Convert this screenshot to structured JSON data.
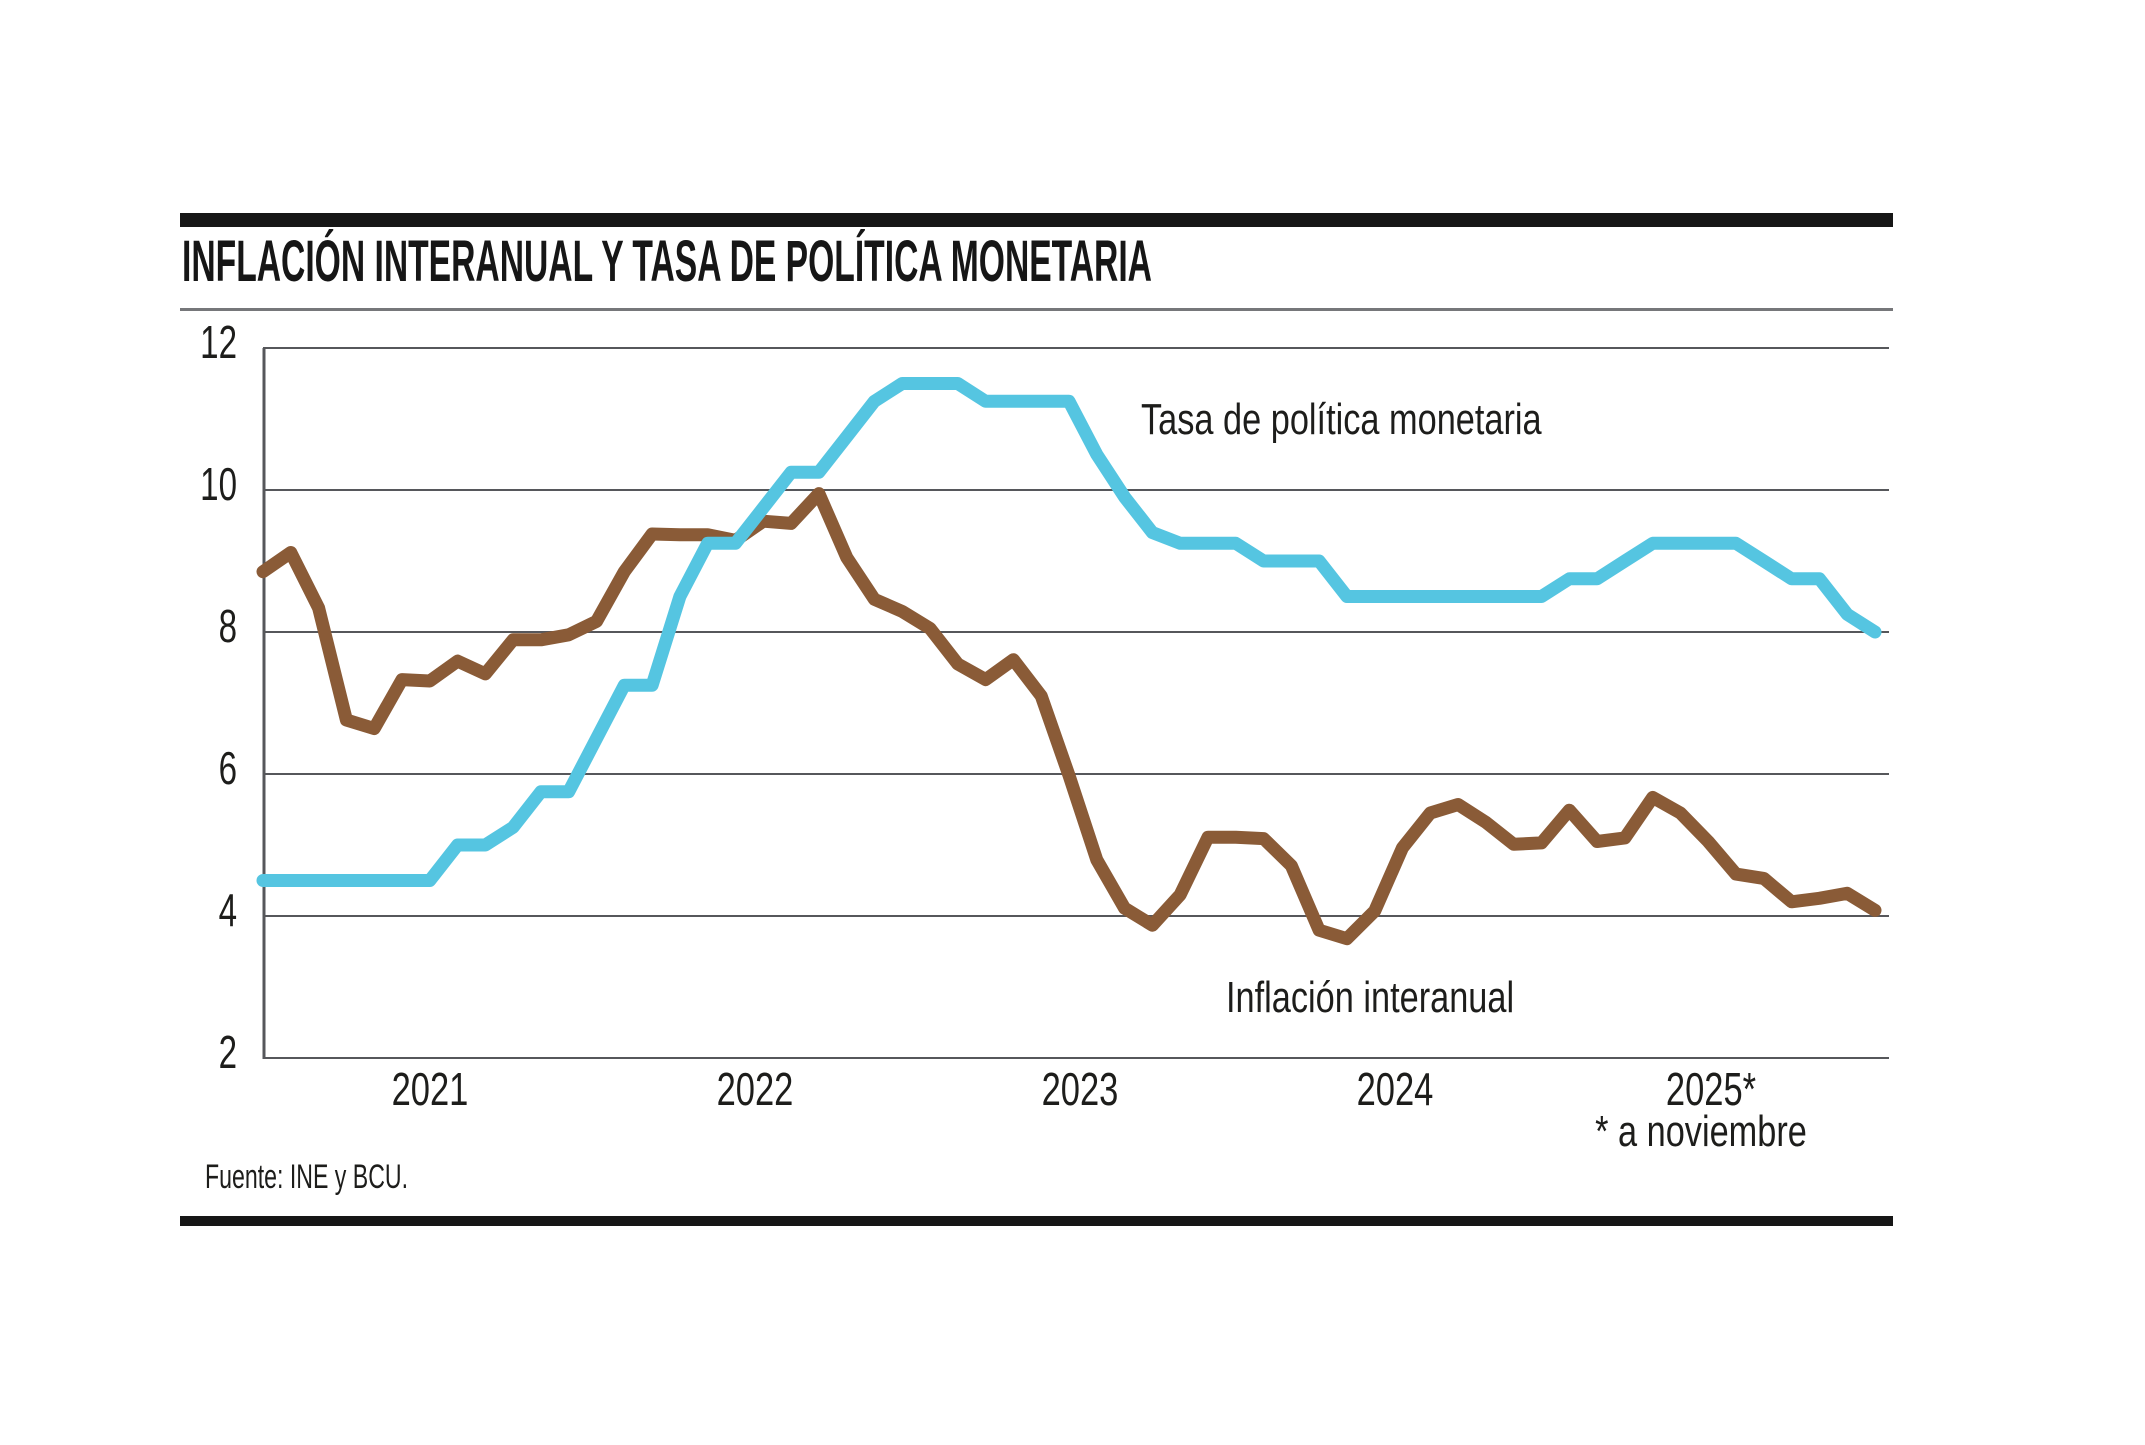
{
  "title": "INFLACIÓN INTERANUAL Y TASA DE POLÍTICA MONETARIA",
  "source": "Fuente: INE y BCU.",
  "footnote": "* a noviembre",
  "colors": {
    "tpm_line": "#55C5E1",
    "inflation_line": "#8A5B37",
    "grid": "#56575B",
    "rule_bar": "#161616",
    "text": "#1D1D1B"
  },
  "chart_data": {
    "type": "line",
    "title": "INFLACIÓN INTERANUAL Y TASA DE POLÍTICA MONETARIA",
    "xlabel": "",
    "ylabel": "",
    "x_unit": "month",
    "x_start": "2021-01",
    "x_end": "2025-11",
    "n_points": 59,
    "xtick_labels": [
      "2021",
      "2022",
      "2023",
      "2024",
      "2025*"
    ],
    "ylim": [
      2,
      12
    ],
    "yticks": [
      2,
      4,
      6,
      8,
      10,
      12
    ],
    "grid": "horizontal",
    "legend_position": "inline-annotations",
    "series": [
      {
        "name": "Tasa de política monetaria",
        "color": "#55C5E1",
        "values": [
          4.5,
          4.5,
          4.5,
          4.5,
          4.5,
          4.5,
          4.5,
          5.0,
          5.0,
          5.25,
          5.75,
          5.75,
          6.5,
          7.25,
          7.25,
          8.5,
          9.25,
          9.25,
          9.75,
          10.25,
          10.25,
          10.75,
          11.25,
          11.5,
          11.5,
          11.5,
          11.25,
          11.25,
          11.25,
          11.25,
          10.5,
          9.9,
          9.4,
          9.25,
          9.25,
          9.25,
          9.0,
          9.0,
          9.0,
          8.5,
          8.5,
          8.5,
          8.5,
          8.5,
          8.5,
          8.5,
          8.5,
          8.75,
          8.75,
          9.0,
          9.25,
          9.25,
          9.25,
          9.25,
          9.0,
          8.75,
          8.75,
          8.25,
          8.0
        ]
      },
      {
        "name": "Inflación interanual",
        "color": "#8A5B37",
        "values": [
          8.85,
          9.12,
          8.34,
          6.76,
          6.64,
          7.33,
          7.31,
          7.59,
          7.41,
          7.89,
          7.89,
          7.96,
          8.15,
          8.85,
          9.38,
          9.37,
          9.37,
          9.29,
          9.56,
          9.53,
          9.95,
          9.05,
          8.46,
          8.29,
          8.05,
          7.55,
          7.33,
          7.61,
          7.1,
          5.98,
          4.79,
          4.11,
          3.87,
          4.3,
          5.11,
          5.11,
          5.09,
          4.71,
          3.8,
          3.68,
          4.07,
          4.96,
          5.45,
          5.57,
          5.32,
          5.01,
          5.03,
          5.49,
          5.05,
          5.1,
          5.67,
          5.45,
          5.05,
          4.59,
          4.53,
          4.2,
          4.25,
          4.32,
          4.08
        ]
      }
    ]
  }
}
